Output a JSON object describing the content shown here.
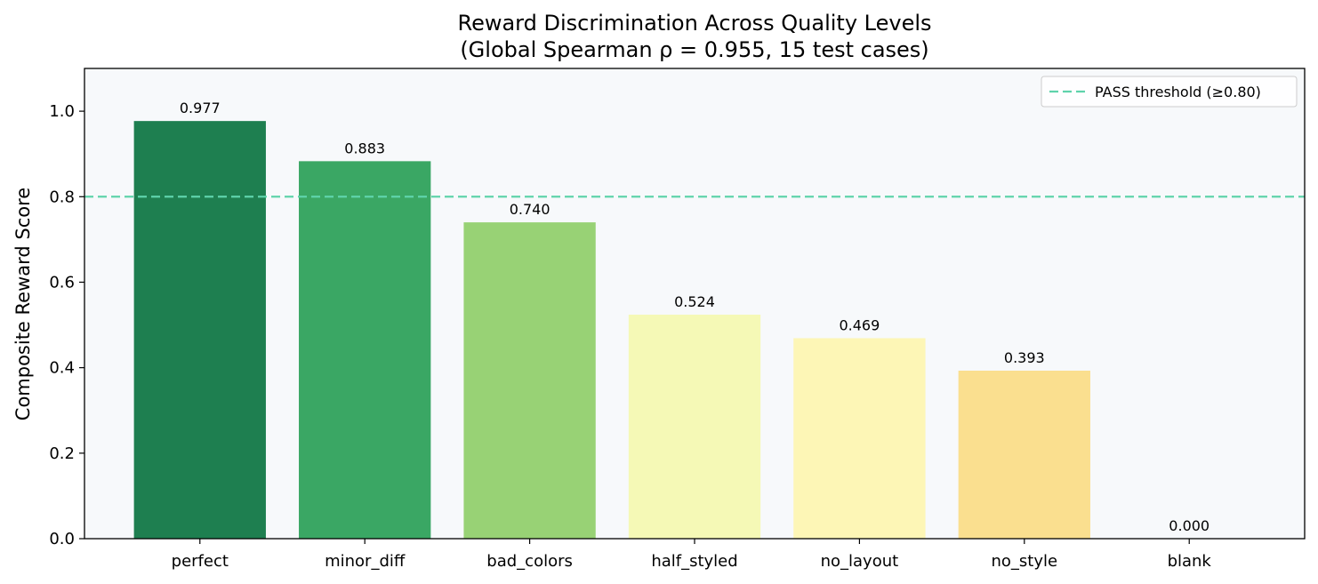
{
  "chart_data": {
    "type": "bar",
    "title": "Reward Discrimination Across Quality Levels",
    "subtitle": "(Global Spearman ρ = 0.955, 15 test cases)",
    "xlabel": "",
    "ylabel": "Composite Reward Score",
    "categories": [
      "perfect",
      "minor_diff",
      "bad_colors",
      "half_styled",
      "no_layout",
      "no_style",
      "blank"
    ],
    "values": [
      0.977,
      0.883,
      0.74,
      0.524,
      0.469,
      0.393,
      0.0
    ],
    "value_labels": [
      "0.977",
      "0.883",
      "0.740",
      "0.524",
      "0.469",
      "0.393",
      "0.000"
    ],
    "colors": [
      "#1e7f50",
      "#3aa764",
      "#98d275",
      "#f5f9b6",
      "#fdf6b6",
      "#fadf8f",
      "#f7f9fb"
    ],
    "ylim": [
      0,
      1.1
    ],
    "yticks": [
      0.0,
      0.2,
      0.4,
      0.6,
      0.8,
      1.0
    ],
    "ytick_labels": [
      "0.0",
      "0.2",
      "0.4",
      "0.6",
      "0.8",
      "1.0"
    ],
    "threshold": {
      "value": 0.8,
      "label": "PASS threshold (≥0.80)",
      "color": "#5fd3ab",
      "style": "dashed"
    },
    "legend_position": "top-right",
    "plot_background": "#f7f9fb",
    "grid": false
  }
}
